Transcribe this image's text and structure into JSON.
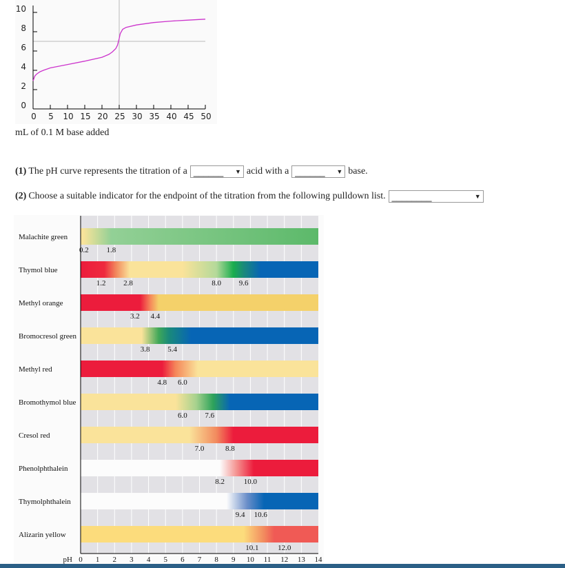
{
  "chart_data": [
    {
      "type": "line",
      "xlabel": "mL of 0.1 M base added",
      "ylabel": "",
      "xlim": [
        0,
        50
      ],
      "ylim": [
        0,
        10
      ],
      "xticks": [
        "0",
        "5",
        "10",
        "15",
        "20",
        "25",
        "30",
        "35",
        "40",
        "45",
        "50"
      ],
      "yticks": [
        "0",
        "2",
        "4",
        "6",
        "8",
        "10"
      ],
      "reference_lines": {
        "x": 25,
        "y": 7
      },
      "line_color": "#cc33cc",
      "points": [
        [
          0,
          2.9
        ],
        [
          0.5,
          3.4
        ],
        [
          1,
          3.6
        ],
        [
          2,
          3.85
        ],
        [
          3,
          4.0
        ],
        [
          5,
          4.25
        ],
        [
          10,
          4.6
        ],
        [
          15,
          4.95
        ],
        [
          20,
          5.35
        ],
        [
          22,
          5.65
        ],
        [
          23,
          5.9
        ],
        [
          24,
          6.25
        ],
        [
          24.5,
          6.6
        ],
        [
          25,
          7.3
        ],
        [
          25.3,
          7.8
        ],
        [
          26,
          8.25
        ],
        [
          27,
          8.45
        ],
        [
          30,
          8.7
        ],
        [
          35,
          8.95
        ],
        [
          40,
          9.1
        ],
        [
          45,
          9.2
        ],
        [
          50,
          9.3
        ]
      ]
    },
    {
      "type": "bar",
      "xlabel": "pH",
      "xlim": [
        0,
        14
      ],
      "xticks": [
        "0",
        "1",
        "2",
        "3",
        "4",
        "5",
        "6",
        "7",
        "8",
        "9",
        "10",
        "11",
        "12",
        "13",
        "14"
      ],
      "indicators": [
        {
          "name": "Malachite green",
          "range_labels": [
            "0.2",
            "1.8"
          ],
          "range": [
            0.2,
            1.8
          ],
          "stops": [
            [
              0,
              "#fae39a"
            ],
            [
              0.2,
              "#f7e39a"
            ],
            [
              1.8,
              "#93d096"
            ],
            [
              14,
              "#5cb96a"
            ]
          ]
        },
        {
          "name": "Thymol blue",
          "range_labels": [
            "1.2",
            "2.8",
            "8.0",
            "9.6"
          ],
          "range": [
            1.2,
            2.8,
            8.0,
            9.6
          ],
          "stops": [
            [
              0,
              "#ec1c3c"
            ],
            [
              1.4,
              "#ee2a3e"
            ],
            [
              2.1,
              "#f28a5e"
            ],
            [
              2.9,
              "#fae39a"
            ],
            [
              6.0,
              "#fae39a"
            ],
            [
              8.0,
              "#b4d99a"
            ],
            [
              9.0,
              "#1aad4e"
            ],
            [
              9.6,
              "#1a8a7a"
            ],
            [
              10.6,
              "#0765b5"
            ],
            [
              14,
              "#0765b5"
            ]
          ]
        },
        {
          "name": "Methyl orange",
          "range_labels": [
            "3.2",
            "4.4"
          ],
          "range": [
            3.2,
            4.4
          ],
          "stops": [
            [
              0,
              "#ec1c3c"
            ],
            [
              3.5,
              "#ec1c3c"
            ],
            [
              4.1,
              "#f5875a"
            ],
            [
              4.6,
              "#f4d16a"
            ],
            [
              14,
              "#f4d16a"
            ]
          ]
        },
        {
          "name": "Bromocresol green",
          "range_labels": [
            "3.8",
            "5.4"
          ],
          "range": [
            3.8,
            5.4
          ],
          "stops": [
            [
              0,
              "#fae39a"
            ],
            [
              3.6,
              "#fae39a"
            ],
            [
              4.6,
              "#3fa758"
            ],
            [
              5.2,
              "#1a8a7a"
            ],
            [
              6.5,
              "#0765b5"
            ],
            [
              14,
              "#0765b5"
            ]
          ]
        },
        {
          "name": "Methyl red",
          "range_labels": [
            "4.8",
            "6.0"
          ],
          "range": [
            4.8,
            6.0
          ],
          "stops": [
            [
              0,
              "#ec1c3c"
            ],
            [
              4.8,
              "#ec1c3c"
            ],
            [
              5.6,
              "#f5875a"
            ],
            [
              6.9,
              "#fae39a"
            ],
            [
              14,
              "#fae39a"
            ]
          ]
        },
        {
          "name": "Bromothymol blue",
          "range_labels": [
            "6.0",
            "7.6"
          ],
          "range": [
            6.0,
            7.6
          ],
          "stops": [
            [
              0,
              "#fae39a"
            ],
            [
              5.6,
              "#fae39a"
            ],
            [
              6.8,
              "#a7d28e"
            ],
            [
              7.8,
              "#2ea35a"
            ],
            [
              8.8,
              "#0765b5"
            ],
            [
              14,
              "#0765b5"
            ]
          ]
        },
        {
          "name": "Cresol red",
          "range_labels": [
            "7.0",
            "8.8"
          ],
          "range": [
            7.0,
            8.8
          ],
          "stops": [
            [
              0,
              "#fae39a"
            ],
            [
              6.4,
              "#fae39a"
            ],
            [
              8.0,
              "#f28a5e"
            ],
            [
              9.0,
              "#ec1c3c"
            ],
            [
              14,
              "#ec1c3c"
            ]
          ]
        },
        {
          "name": "Phenolphthalein",
          "range_labels": [
            "8.2",
            "10.0"
          ],
          "range": [
            8.2,
            10.0
          ],
          "stops": [
            [
              0,
              "#fcfcfc"
            ],
            [
              8.2,
              "#fcfcfc"
            ],
            [
              9.2,
              "#f4918f"
            ],
            [
              10.2,
              "#ec1c3c"
            ],
            [
              14,
              "#ec1c3c"
            ]
          ]
        },
        {
          "name": "Thymolphthalein",
          "range_labels": [
            "9.4",
            "10.6"
          ],
          "range": [
            9.4,
            10.6
          ],
          "stops": [
            [
              0,
              "#fcfcfc"
            ],
            [
              8.6,
              "#fcfcfc"
            ],
            [
              9.8,
              "#6b8ec9"
            ],
            [
              10.8,
              "#0765b5"
            ],
            [
              14,
              "#0765b5"
            ]
          ]
        },
        {
          "name": "Alizarin yellow",
          "range_labels": [
            "10.1",
            "12.0"
          ],
          "range": [
            10.1,
            12.0
          ],
          "stops": [
            [
              0,
              "#fcdc7c"
            ],
            [
              9.6,
              "#fcdc7c"
            ],
            [
              10.8,
              "#f28a5e"
            ],
            [
              11.4,
              "#f05a55"
            ],
            [
              14,
              "#f05a55"
            ]
          ]
        }
      ]
    }
  ],
  "questions": {
    "q1_num": "(1)",
    "q1_text_a": "The pH curve represents the titration of a",
    "q1_select1": "______",
    "q1_text_b": "acid with a",
    "q1_select2": "______",
    "q1_text_c": "base.",
    "q2_num": "(2)",
    "q2_text": "Choose a suitable indicator for the endpoint of the titration from the following pulldown list.",
    "q2_select": "________",
    "arrow": "▼"
  }
}
